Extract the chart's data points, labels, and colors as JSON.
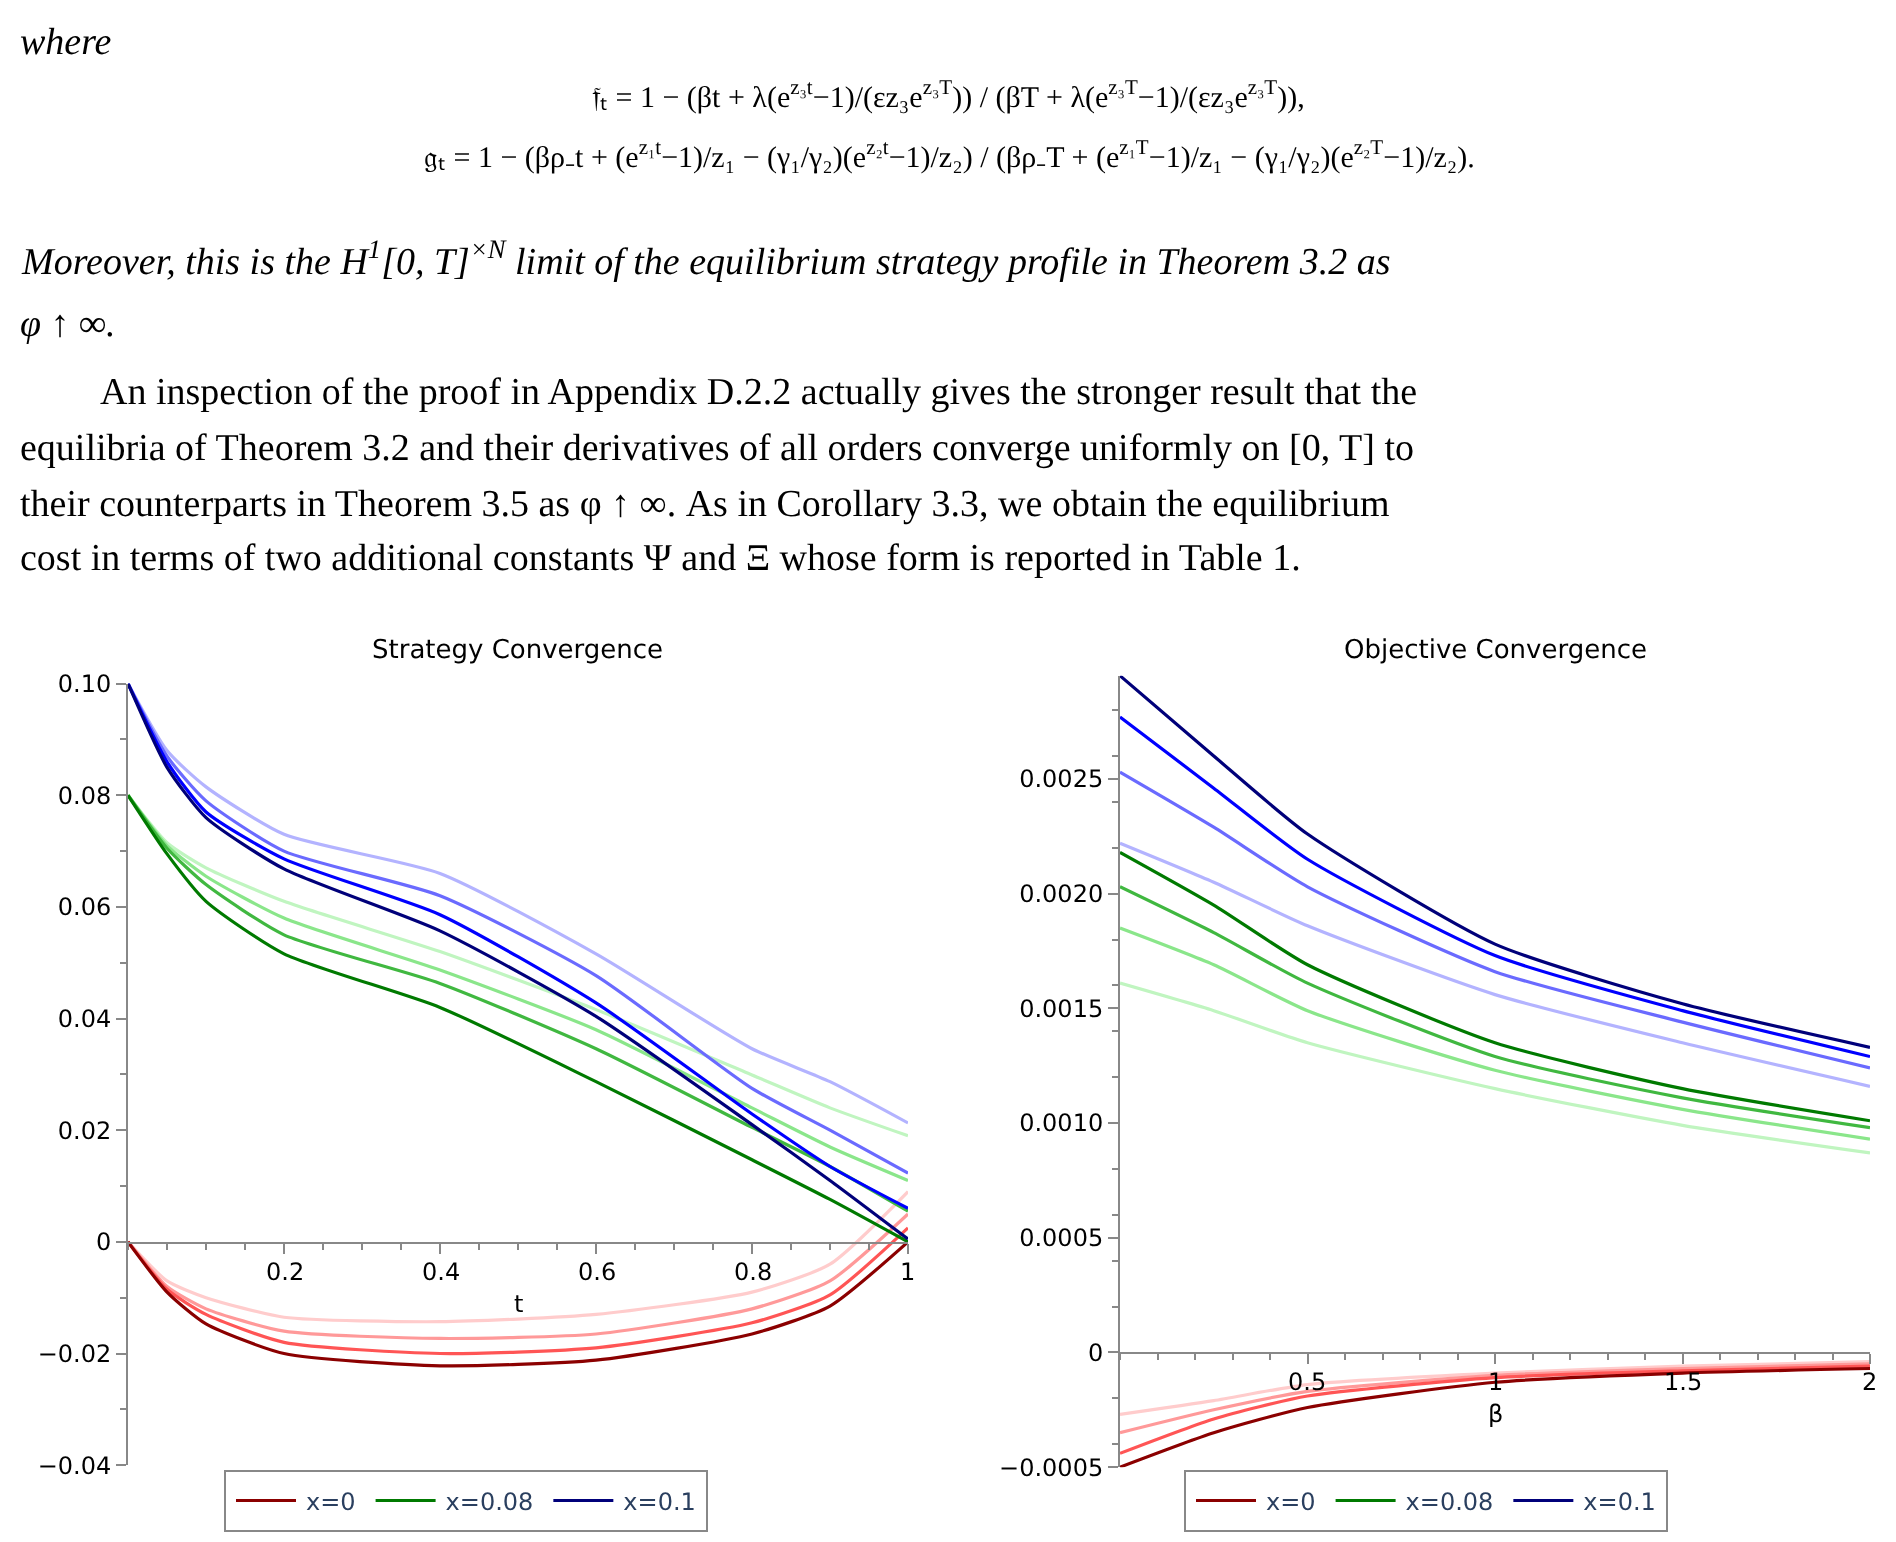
{
  "chart_data": [
    {
      "type": "other",
      "annotations": [
        "where",
        "𝔣ₜ = 1 − (βt + λ(e$^{z₃t}$−1)/(εz₃e$^{z₃T}$)) / (βT + λ(e$^{z₃T}$−1)/(εz₃e$^{z₃T}$)),",
        "𝔤ₜ = 1 − (βρ₋t + (e$^{z₁t}$−1)/z₁ − (γ₁/γ₂)(e$^{z₂t}$−1)/z₂) / (βρ₋T + (e$^{z₁T}$−1)/z₁ − (γ₁/γ₂)(e$^{z₂T}$−1)/z₂).",
        "Moreover, this is the H$^{1}$[0, T]$^{×N}$ limit of the equilibrium strategy profile in Theorem 3.2 as",
        "φ ↑ ∞.",
        "An inspection of the proof in Appendix D.2.2 actually gives the stronger result that the",
        "equilibria of Theorem 3.2 and their derivatives of all orders converge uniformly on [0, T] to",
        "their counterparts in Theorem 3.5 as φ ↑ ∞. As in Corollary 3.3, we obtain the equilibrium",
        "cost in terms of two additional constants Ψ and Ξ whose form is reported in Table 1."
      ]
    },
    {
      "type": "line",
      "title": "Strategy Convergence",
      "xlabel": "t",
      "x": [
        0,
        0.05,
        0.1,
        0.2,
        0.4,
        0.6,
        0.8,
        0.9,
        1
      ],
      "xlim": [
        0,
        1
      ],
      "xticks": [
        0.2,
        0.4,
        0.6,
        0.8,
        1
      ],
      "ylim": [
        -0.04,
        0.1
      ],
      "yticks": [
        {
          "value": -0.04,
          "label": "−0.04"
        },
        {
          "value": -0.02,
          "label": "−0.02"
        },
        0,
        0.02,
        0.04,
        0.06,
        0.08,
        {
          "value": 0.1,
          "label": "0.10"
        }
      ],
      "legend": "bottom",
      "marker": "none",
      "line_style": "solid",
      "series": [
        {
          "color": "#ffcccc",
          "values": [
            0,
            -0.007,
            -0.01,
            -0.0135,
            -0.0143,
            -0.013,
            -0.009,
            -0.004,
            0.009
          ]
        },
        {
          "color": "#ff9999",
          "values": [
            0,
            -0.008,
            -0.012,
            -0.016,
            -0.0173,
            -0.0165,
            -0.012,
            -0.007,
            0.005
          ]
        },
        {
          "color": "#ff5555",
          "values": [
            0,
            -0.0085,
            -0.013,
            -0.018,
            -0.02,
            -0.019,
            -0.0145,
            -0.0095,
            0.0025
          ]
        },
        {
          "name": "x=0",
          "color": "#8b0000",
          "values": [
            0,
            -0.009,
            -0.0147,
            -0.02,
            -0.0222,
            -0.0212,
            -0.0165,
            -0.0115,
            0
          ]
        },
        {
          "color": "#c0f5c0",
          "values": [
            0.08,
            0.0715,
            0.067,
            0.061,
            0.052,
            0.0416,
            0.0299,
            0.024,
            0.019
          ]
        },
        {
          "color": "#8ae68a",
          "values": [
            0.08,
            0.071,
            0.0655,
            0.058,
            0.0487,
            0.038,
            0.024,
            0.017,
            0.011
          ]
        },
        {
          "color": "#40b840",
          "values": [
            0.08,
            0.0705,
            0.064,
            0.055,
            0.0463,
            0.0346,
            0.0205,
            0.0135,
            0.0055
          ]
        },
        {
          "name": "x=0.08",
          "color": "#007a00",
          "values": [
            0.08,
            0.0695,
            0.061,
            0.0516,
            0.042,
            0.0287,
            0.0147,
            0.0076,
            0
          ]
        },
        {
          "color": "#b3b3ff",
          "values": [
            0.1,
            0.088,
            0.0815,
            0.073,
            0.066,
            0.0516,
            0.0346,
            0.0287,
            0.0213
          ]
        },
        {
          "color": "#6a6aff",
          "values": [
            0.1,
            0.087,
            0.079,
            0.07,
            0.062,
            0.0477,
            0.0275,
            0.02,
            0.0123
          ]
        },
        {
          "color": "#0000ff",
          "values": [
            0.1,
            0.086,
            0.077,
            0.0686,
            0.0586,
            0.0428,
            0.0229,
            0.0135,
            0.006
          ]
        },
        {
          "name": "x=0.1",
          "color": "#00007a",
          "values": [
            0.1,
            0.085,
            0.076,
            0.0668,
            0.0557,
            0.0404,
            0.021,
            0.011,
            0.0005
          ]
        }
      ]
    },
    {
      "type": "line",
      "title": "Objective Convergence",
      "xlabel": "β",
      "x": [
        0,
        0.25,
        0.5,
        1,
        1.5,
        2
      ],
      "xlim": [
        0,
        2
      ],
      "xticks": [
        0.5,
        1,
        1.5,
        2
      ],
      "ylim": [
        -0.0005,
        0.00295
      ],
      "yticks": [
        {
          "value": -0.0005,
          "label": "−0.0005"
        },
        0,
        0.0005,
        {
          "value": 0.001,
          "label": "0.0010"
        },
        0.0015,
        {
          "value": 0.002,
          "label": "0.0020"
        },
        0.0025
      ],
      "legend": "bottom",
      "marker": "none",
      "line_style": "solid",
      "series": [
        {
          "color": "#ffcccc",
          "values": [
            -0.00027,
            -0.00021,
            -0.00014,
            -9e-05,
            -6e-05,
            -4e-05
          ]
        },
        {
          "color": "#ff9999",
          "values": [
            -0.00035,
            -0.00025,
            -0.00017,
            -0.0001,
            -7e-05,
            -5e-05
          ]
        },
        {
          "color": "#ff5555",
          "values": [
            -0.00044,
            -0.00029,
            -0.00019,
            -0.00011,
            -8e-05,
            -6e-05
          ]
        },
        {
          "name": "x=0",
          "color": "#8b0000",
          "values": [
            -0.0005,
            -0.00035,
            -0.00024,
            -0.00013,
            -9e-05,
            -7e-05
          ]
        },
        {
          "color": "#c0f5c0",
          "values": [
            0.00161,
            0.00149,
            0.00135,
            0.00115,
            0.00099,
            0.00087
          ]
        },
        {
          "color": "#8ae68a",
          "values": [
            0.00185,
            0.00169,
            0.00149,
            0.00123,
            0.00106,
            0.00093
          ]
        },
        {
          "color": "#40b840",
          "values": [
            0.00203,
            0.00183,
            0.00161,
            0.00129,
            0.00111,
            0.00098
          ]
        },
        {
          "name": "x=0.08",
          "color": "#007a00",
          "values": [
            0.00218,
            0.00195,
            0.00169,
            0.00135,
            0.00115,
            0.00101
          ]
        },
        {
          "color": "#b3b3ff",
          "values": [
            0.00222,
            0.00205,
            0.00186,
            0.00156,
            0.00135,
            0.00116
          ]
        },
        {
          "color": "#6a6aff",
          "values": [
            0.00253,
            0.00229,
            0.00203,
            0.00166,
            0.00144,
            0.00124
          ]
        },
        {
          "color": "#0000ff",
          "values": [
            0.00277,
            0.00246,
            0.00215,
            0.00173,
            0.00149,
            0.00129
          ]
        },
        {
          "name": "x=0.1",
          "color": "#00007a",
          "values": [
            0.00295,
            0.0026,
            0.00226,
            0.00178,
            0.00152,
            0.00133
          ]
        }
      ]
    }
  ]
}
